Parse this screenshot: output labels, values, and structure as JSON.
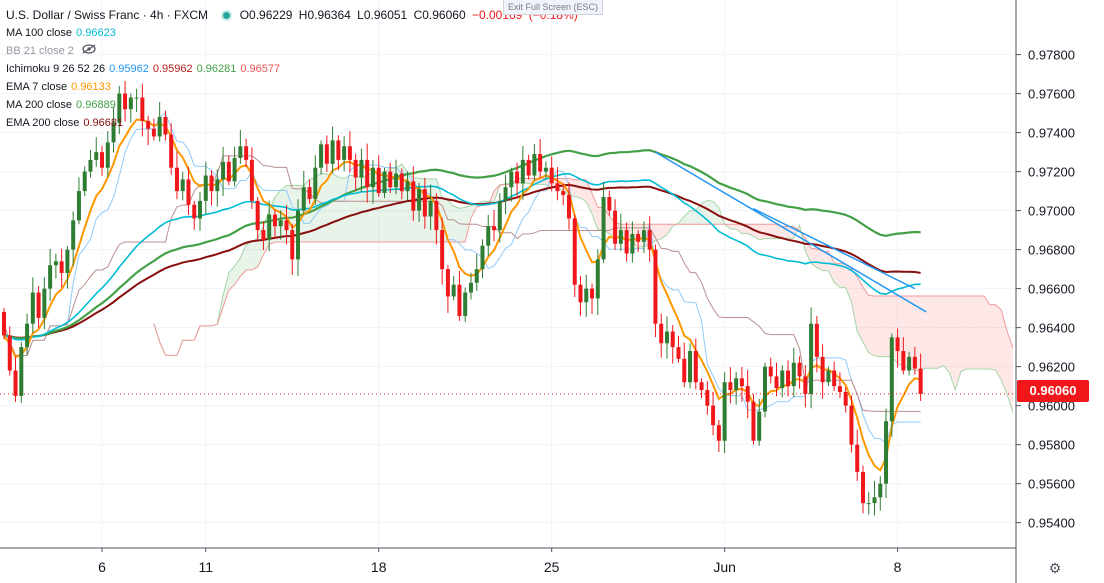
{
  "header": {
    "title": "U.S. Dollar / Swiss Franc · 4h · FXCM",
    "ohlc": [
      "O0.96229",
      "H0.96364",
      "L0.96051",
      "C0.96060",
      "−0.00169",
      "(−0.18%)"
    ],
    "exit_fullscreen": "Exit Full Screen (ESC)"
  },
  "indicators": [
    {
      "label": "MA 100 close",
      "values": [
        "0.96623"
      ],
      "colors": [
        "#00bcd4"
      ]
    },
    {
      "label": "BB 21 close 2",
      "values": [],
      "colors": [],
      "hidden": true
    },
    {
      "label": "Ichimoku 9 26 52 26",
      "values": [
        "0.95962",
        "0.95962",
        "0.96281",
        "0.96577"
      ],
      "colors": [
        "#2196f3",
        "#b71c1c",
        "#43a047",
        "#ef5350"
      ]
    },
    {
      "label": "EMA 7 close",
      "values": [
        "0.96133"
      ],
      "colors": [
        "#ff9800"
      ]
    },
    {
      "label": "MA 200 close",
      "values": [
        "0.96889"
      ],
      "colors": [
        "#43a047"
      ]
    },
    {
      "label": "EMA 200 close",
      "values": [
        "0.96681"
      ],
      "colors": [
        "#880e0e"
      ]
    }
  ],
  "price_label": "0.96060",
  "colors": {
    "up": "#2e7d32",
    "down": "#f0171b",
    "ema7": "#ff9800",
    "ma100": "#00bcd4",
    "ma200": "#43a047",
    "ema200": "#880e0e",
    "trend": "#2196f3"
  },
  "chart_data": {
    "type": "candlestick",
    "y_ticks": [
      0.978,
      0.976,
      0.974,
      0.972,
      0.97,
      0.968,
      0.966,
      0.964,
      0.962,
      0.96,
      0.958,
      0.956,
      0.954
    ],
    "ylim": [
      0.9527,
      0.9808
    ],
    "x_ticks": [
      {
        "label": "6",
        "bar": 17
      },
      {
        "label": "11",
        "bar": 35
      },
      {
        "label": "18",
        "bar": 65
      },
      {
        "label": "25",
        "bar": 95
      },
      {
        "label": "Jun",
        "bar": 125
      },
      {
        "label": "8",
        "bar": 155
      }
    ],
    "close": [
      0.9636,
      0.9618,
      0.9605,
      0.963,
      0.9642,
      0.9658,
      0.9645,
      0.966,
      0.9672,
      0.9674,
      0.9668,
      0.968,
      0.9695,
      0.971,
      0.972,
      0.9726,
      0.973,
      0.9722,
      0.9735,
      0.9745,
      0.976,
      0.9752,
      0.9758,
      0.9758,
      0.9746,
      0.9742,
      0.9738,
      0.9748,
      0.9739,
      0.9722,
      0.971,
      0.9716,
      0.9703,
      0.9696,
      0.9705,
      0.9718,
      0.971,
      0.9716,
      0.9725,
      0.9715,
      0.9727,
      0.9733,
      0.9726,
      0.9705,
      0.969,
      0.9685,
      0.9698,
      0.9692,
      0.9695,
      0.969,
      0.9675,
      0.97,
      0.9712,
      0.9706,
      0.9722,
      0.9734,
      0.9724,
      0.9736,
      0.9726,
      0.9733,
      0.9726,
      0.9717,
      0.9726,
      0.9712,
      0.9722,
      0.9709,
      0.972,
      0.9712,
      0.9719,
      0.971,
      0.9715,
      0.97,
      0.9711,
      0.9697,
      0.9705,
      0.969,
      0.967,
      0.9656,
      0.9662,
      0.9646,
      0.9658,
      0.9663,
      0.967,
      0.9682,
      0.9692,
      0.969,
      0.9705,
      0.9712,
      0.972,
      0.9714,
      0.9726,
      0.9718,
      0.9729,
      0.972,
      0.9722,
      0.9714,
      0.971,
      0.9708,
      0.9696,
      0.9662,
      0.9653,
      0.966,
      0.9655,
      0.9675,
      0.9707,
      0.97,
      0.9683,
      0.969,
      0.9678,
      0.9688,
      0.9684,
      0.969,
      0.968,
      0.9642,
      0.9632,
      0.9638,
      0.963,
      0.9624,
      0.9612,
      0.9628,
      0.9612,
      0.9608,
      0.96,
      0.959,
      0.9582,
      0.9612,
      0.9608,
      0.9614,
      0.961,
      0.9602,
      0.9582,
      0.9597,
      0.962,
      0.9615,
      0.9609,
      0.9618,
      0.961,
      0.9622,
      0.9615,
      0.9606,
      0.9642,
      0.9625,
      0.9612,
      0.9618,
      0.961,
      0.9607,
      0.96,
      0.958,
      0.9566,
      0.955,
      0.955,
      0.9553,
      0.956,
      0.9592,
      0.9635,
      0.9628,
      0.9618,
      0.9625,
      0.9619,
      0.9606
    ],
    "ema7_last": 0.96133,
    "ma100_last": 0.96623,
    "ma200_last": 0.96889,
    "ema200_last": 0.96681,
    "ichimoku": {
      "conversion": 0.95962,
      "base": 0.95962,
      "span_a": 0.96281,
      "span_b": 0.96577
    },
    "trendlines": [
      {
        "from": [
          113,
          0.973
        ],
        "to": [
          160,
          0.9648
        ]
      },
      {
        "from": [
          130,
          0.9701
        ],
        "to": [
          158,
          0.966
        ]
      }
    ]
  }
}
